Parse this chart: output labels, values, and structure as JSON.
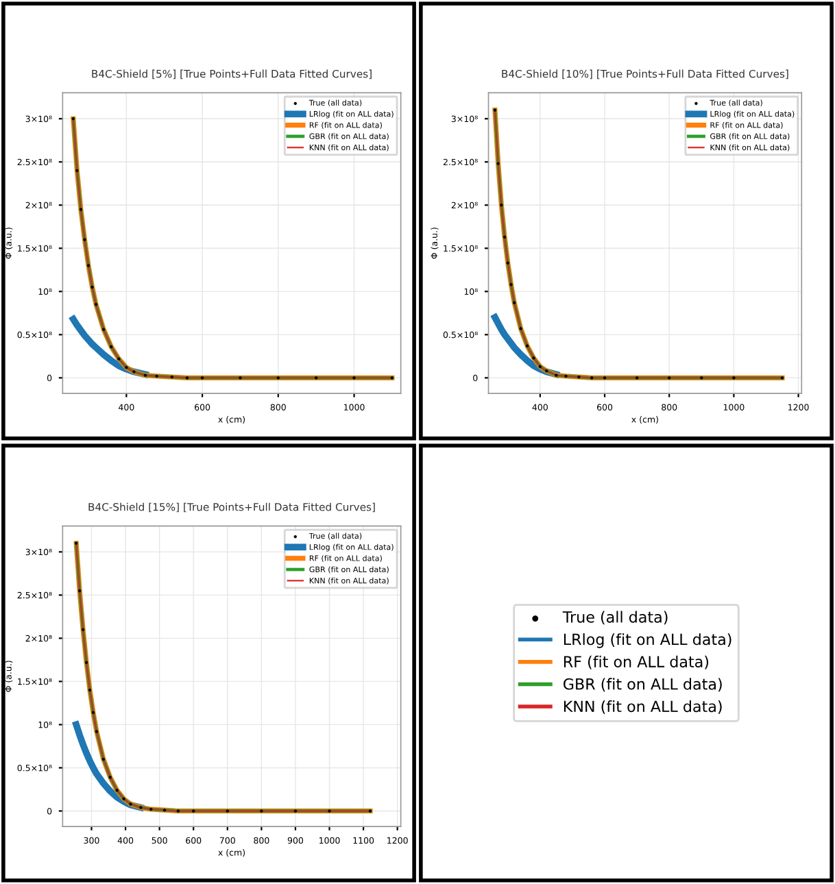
{
  "chart_data": [
    {
      "type": "line",
      "title": "B4C-Shield [5%] [True Points+Full Data Fitted Curves]",
      "xlabel": "x (cm)",
      "ylabel": "Φ (a.u.)",
      "x": [
        260,
        270,
        280,
        290,
        300,
        310,
        320,
        340,
        360,
        380,
        400,
        420,
        450,
        480,
        520,
        560,
        600,
        700,
        800,
        900,
        1000,
        1100
      ],
      "xlim": [
        232,
        1123
      ],
      "xticks": [
        400,
        600,
        800,
        1000
      ],
      "ylim": [
        -18000000,
        330000000
      ],
      "yticks": [
        {
          "value": 0,
          "label": "0"
        },
        {
          "value": 50000000,
          "label": "0.5×10⁸"
        },
        {
          "value": 100000000,
          "label": "10⁸"
        },
        {
          "value": 150000000,
          "label": "1.5×10⁸"
        },
        {
          "value": 200000000,
          "label": "2×10⁸"
        },
        {
          "value": 250000000,
          "label": "2.5×10⁸"
        },
        {
          "value": 300000000,
          "label": "3×10⁸"
        }
      ],
      "grid": true,
      "legend": "top right",
      "series": [
        {
          "name": "True (all data)",
          "type": "scatter",
          "marker": "circle",
          "color": "#000000",
          "values": [
            300000000,
            240000000,
            195000000,
            160000000,
            130000000,
            105000000,
            85000000,
            56000000,
            36000000,
            22000000,
            12000000,
            7000000,
            3000000,
            2000000,
            1000000,
            0,
            0,
            0,
            0,
            0,
            0,
            0
          ]
        },
        {
          "name": "LRlog (fit on ALL data)",
          "color": "#1f77b4",
          "values": [
            68000000,
            61000000,
            55000000,
            49000000,
            44000000,
            39000000,
            35000000,
            27000000,
            20000000,
            14000000,
            10000000,
            7000000,
            4000000,
            null,
            null,
            null,
            null,
            null,
            null,
            null,
            null,
            null
          ]
        },
        {
          "name": "RF (fit on ALL data)",
          "color": "#ff7f0e",
          "values": [
            300000000,
            240000000,
            195000000,
            160000000,
            130000000,
            105000000,
            85000000,
            56000000,
            36000000,
            22000000,
            12000000,
            7000000,
            3000000,
            2000000,
            1000000,
            0,
            0,
            0,
            0,
            0,
            0,
            0
          ]
        },
        {
          "name": "GBR (fit on ALL data)",
          "color": "#2ca02c",
          "values": [
            300000000,
            240000000,
            195000000,
            160000000,
            130000000,
            105000000,
            85000000,
            56000000,
            36000000,
            22000000,
            12000000,
            7000000,
            3000000,
            2000000,
            1000000,
            0,
            0,
            0,
            0,
            0,
            0,
            0
          ]
        },
        {
          "name": "KNN (fit on ALL data)",
          "color": "#d62728",
          "values": [
            300000000,
            240000000,
            195000000,
            160000000,
            130000000,
            105000000,
            85000000,
            56000000,
            36000000,
            22000000,
            12000000,
            7000000,
            3000000,
            2000000,
            1000000,
            0,
            0,
            0,
            0,
            0,
            0,
            0
          ]
        }
      ]
    },
    {
      "type": "line",
      "title": "B4C-Shield [10%] [True Points+Full Data Fitted Curves]",
      "xlabel": "x (cm)",
      "ylabel": "Φ (a.u.)",
      "x": [
        260,
        270,
        280,
        290,
        300,
        310,
        320,
        340,
        360,
        380,
        400,
        420,
        450,
        480,
        520,
        560,
        600,
        700,
        800,
        900,
        1000,
        1150
      ],
      "xlim": [
        240,
        1210
      ],
      "xticks": [
        400,
        600,
        800,
        1000,
        1200
      ],
      "ylim": [
        -18000000,
        330000000
      ],
      "yticks": [
        {
          "value": 0,
          "label": "0"
        },
        {
          "value": 50000000,
          "label": "0.5×10⁸"
        },
        {
          "value": 100000000,
          "label": "10⁸"
        },
        {
          "value": 150000000,
          "label": "1.5×10⁸"
        },
        {
          "value": 200000000,
          "label": "2×10⁸"
        },
        {
          "value": 250000000,
          "label": "2.5×10⁸"
        },
        {
          "value": 300000000,
          "label": "3×10⁸"
        }
      ],
      "grid": true,
      "legend": "top right",
      "series": [
        {
          "name": "True (all data)",
          "type": "scatter",
          "marker": "circle",
          "color": "#000000",
          "values": [
            310000000,
            248000000,
            200000000,
            163000000,
            133000000,
            108000000,
            87000000,
            57000000,
            37000000,
            23000000,
            13000000,
            8000000,
            3000000,
            2000000,
            1000000,
            0,
            0,
            0,
            0,
            0,
            0,
            0
          ]
        },
        {
          "name": "LRlog (fit on ALL data)",
          "color": "#1f77b4",
          "values": [
            70000000,
            63000000,
            56000000,
            50000000,
            45000000,
            40000000,
            35000000,
            27000000,
            20000000,
            14000000,
            10000000,
            7000000,
            4000000,
            null,
            null,
            null,
            null,
            null,
            null,
            null,
            null,
            null
          ]
        },
        {
          "name": "RF (fit on ALL data)",
          "color": "#ff7f0e",
          "values": [
            310000000,
            248000000,
            200000000,
            163000000,
            133000000,
            108000000,
            87000000,
            57000000,
            37000000,
            23000000,
            13000000,
            8000000,
            3000000,
            2000000,
            1000000,
            0,
            0,
            0,
            0,
            0,
            0,
            0
          ]
        },
        {
          "name": "GBR (fit on ALL data)",
          "color": "#2ca02c",
          "values": [
            310000000,
            248000000,
            200000000,
            163000000,
            133000000,
            108000000,
            87000000,
            57000000,
            37000000,
            23000000,
            13000000,
            8000000,
            3000000,
            2000000,
            1000000,
            0,
            0,
            0,
            0,
            0,
            0,
            0
          ]
        },
        {
          "name": "KNN (fit on ALL data)",
          "color": "#d62728",
          "values": [
            310000000,
            248000000,
            200000000,
            163000000,
            133000000,
            108000000,
            87000000,
            57000000,
            37000000,
            23000000,
            13000000,
            8000000,
            3000000,
            2000000,
            1000000,
            0,
            0,
            0,
            0,
            0,
            0,
            0
          ]
        }
      ]
    },
    {
      "type": "line",
      "title": "B4C-Shield [15%] [True Points+Full Data Fitted Curves]",
      "xlabel": "x (cm)",
      "ylabel": "Φ (a.u.)",
      "x": [
        255,
        265,
        275,
        285,
        295,
        305,
        315,
        335,
        355,
        375,
        395,
        415,
        445,
        475,
        515,
        555,
        600,
        700,
        800,
        900,
        1000,
        1120
      ],
      "xlim": [
        215,
        1210
      ],
      "xticks": [
        300,
        400,
        500,
        600,
        700,
        800,
        900,
        1000,
        1100,
        1200
      ],
      "ylim": [
        -18000000,
        330000000
      ],
      "yticks": [
        {
          "value": 0,
          "label": "0"
        },
        {
          "value": 50000000,
          "label": "0.5×10⁸"
        },
        {
          "value": 100000000,
          "label": "10⁸"
        },
        {
          "value": 150000000,
          "label": "1.5×10⁸"
        },
        {
          "value": 200000000,
          "label": "2×10⁸"
        },
        {
          "value": 250000000,
          "label": "2.5×10⁸"
        },
        {
          "value": 300000000,
          "label": "3×10⁸"
        }
      ],
      "grid": true,
      "legend": "top right",
      "series": [
        {
          "name": "True (all data)",
          "type": "scatter",
          "marker": "circle",
          "color": "#000000",
          "values": [
            310000000,
            255000000,
            210000000,
            172000000,
            140000000,
            114000000,
            92000000,
            60000000,
            39000000,
            24000000,
            14000000,
            8000000,
            4000000,
            2000000,
            1000000,
            0,
            0,
            0,
            0,
            0,
            0,
            0
          ]
        },
        {
          "name": "LRlog (fit on ALL data)",
          "color": "#1f77b4",
          "values": [
            100000000,
            88000000,
            77000000,
            67000000,
            58000000,
            50000000,
            43000000,
            32000000,
            23000000,
            16000000,
            11000000,
            7000000,
            4000000,
            null,
            null,
            null,
            null,
            null,
            null,
            null,
            null,
            null
          ]
        },
        {
          "name": "RF (fit on ALL data)",
          "color": "#ff7f0e",
          "values": [
            310000000,
            255000000,
            210000000,
            172000000,
            140000000,
            114000000,
            92000000,
            60000000,
            39000000,
            24000000,
            14000000,
            8000000,
            4000000,
            2000000,
            1000000,
            0,
            0,
            0,
            0,
            0,
            0,
            0
          ]
        },
        {
          "name": "GBR (fit on ALL data)",
          "color": "#2ca02c",
          "values": [
            310000000,
            255000000,
            210000000,
            172000000,
            140000000,
            114000000,
            92000000,
            60000000,
            39000000,
            24000000,
            14000000,
            8000000,
            4000000,
            2000000,
            1000000,
            0,
            0,
            0,
            0,
            0,
            0,
            0
          ]
        },
        {
          "name": "KNN (fit on ALL data)",
          "color": "#d62728",
          "values": [
            310000000,
            255000000,
            210000000,
            172000000,
            140000000,
            114000000,
            92000000,
            60000000,
            39000000,
            24000000,
            14000000,
            8000000,
            4000000,
            2000000,
            1000000,
            0,
            0,
            0,
            0,
            0,
            0,
            0
          ]
        }
      ]
    }
  ]
}
